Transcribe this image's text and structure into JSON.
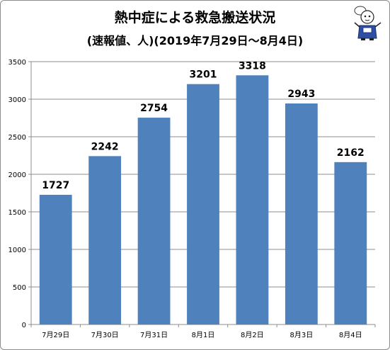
{
  "chart_data": {
    "type": "bar",
    "title": "熱中症による救急搬送状況",
    "subtitle": "(速報値、人)(2019年7月29日～8月4日)",
    "categories": [
      "7月29日",
      "7月30日",
      "7月31日",
      "8月1日",
      "8月2日",
      "8月3日",
      "8月4日"
    ],
    "series": [
      {
        "values": [
          1727,
          2242,
          2754,
          3201,
          3318,
          2943,
          2162
        ]
      }
    ],
    "y_ticks": [
      0,
      500,
      1000,
      1500,
      2000,
      2500,
      3000,
      3500
    ],
    "ylim": [
      0,
      3500
    ],
    "grid": true,
    "bar_color": "#4f81bd",
    "data_labels": true
  }
}
